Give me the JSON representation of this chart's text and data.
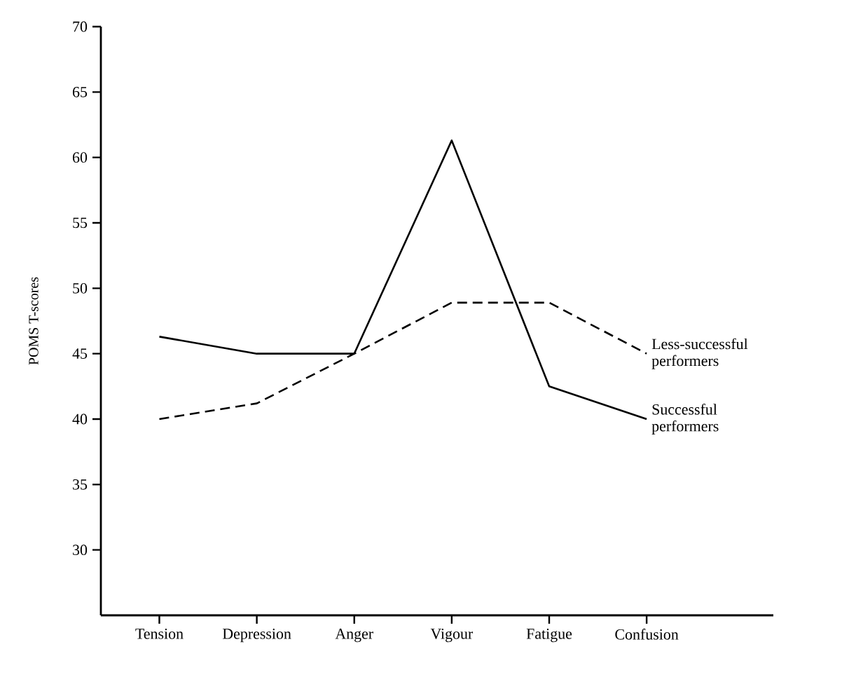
{
  "chart_data": {
    "type": "line",
    "ylabel": "POMS T-scores",
    "categories": [
      "Tension",
      "Depression",
      "Anger",
      "Vigour",
      "Fatigue",
      "Confusion"
    ],
    "series": [
      {
        "name": "Less-successful performers",
        "color": "#000000",
        "line_style": "dashed",
        "values": [
          40,
          41.2,
          45,
          48.9,
          48.9,
          45
        ]
      },
      {
        "name": "Successful performers",
        "color": "#000000",
        "line_style": "solid",
        "values": [
          46.3,
          45,
          45,
          61.3,
          42.5,
          40
        ]
      }
    ],
    "ylim": [
      25,
      70
    ],
    "yticks": [
      30,
      35,
      40,
      45,
      50,
      55,
      60,
      65,
      70
    ],
    "marker": "none",
    "legend": false
  }
}
